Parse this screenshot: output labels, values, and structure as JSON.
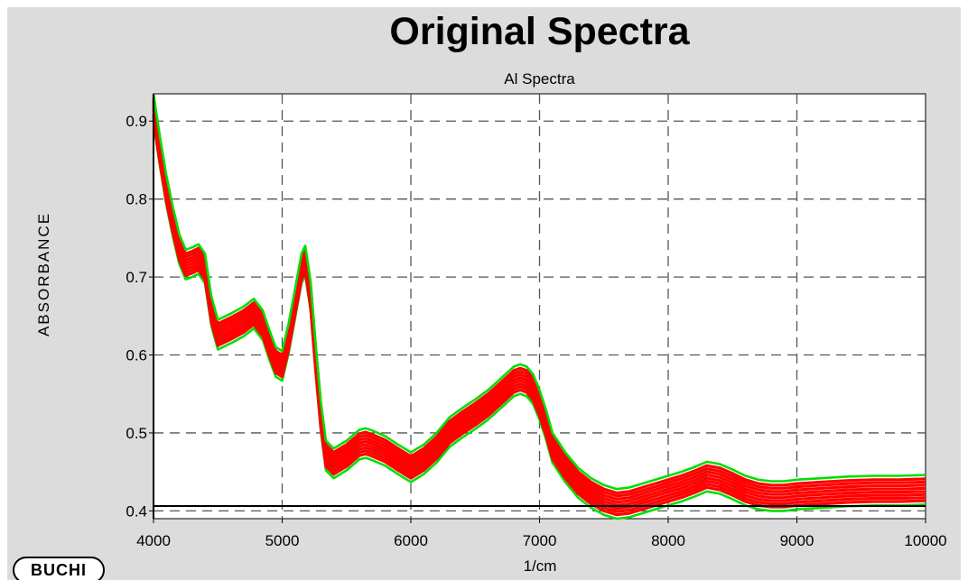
{
  "chart_data": {
    "type": "line",
    "title": "Original Spectra",
    "subtitle": "Al Spectra",
    "xlabel": "1/cm",
    "ylabel": "ABSORBANCE",
    "xlim": [
      4000,
      10000
    ],
    "ylim": [
      0.39,
      0.935
    ],
    "x_ticks": [
      4000,
      5000,
      6000,
      7000,
      8000,
      9000,
      10000
    ],
    "y_ticks": [
      0.4,
      0.5,
      0.6,
      0.7,
      0.8,
      0.9
    ],
    "y_tick_labels": [
      "0.4",
      "0.5",
      "0.6",
      "0.7",
      "0.8",
      "0.9"
    ],
    "grid": true,
    "grid_style": "dashed",
    "colors": {
      "outer_spectra": "#00e000",
      "inner_spectra": "#ff0000",
      "grid": "#555555",
      "plot_background": "#ffffff",
      "panel_background": "#dcdcdc"
    },
    "mean_spectrum": {
      "x": [
        4000,
        4050,
        4100,
        4150,
        4200,
        4250,
        4300,
        4350,
        4400,
        4450,
        4500,
        4600,
        4700,
        4780,
        4850,
        4900,
        4950,
        5000,
        5050,
        5100,
        5150,
        5180,
        5220,
        5260,
        5300,
        5340,
        5400,
        5500,
        5600,
        5650,
        5700,
        5800,
        5900,
        6000,
        6100,
        6200,
        6300,
        6400,
        6500,
        6600,
        6700,
        6800,
        6850,
        6900,
        6950,
        7000,
        7050,
        7100,
        7200,
        7300,
        7400,
        7500,
        7600,
        7700,
        7800,
        7900,
        8000,
        8100,
        8200,
        8300,
        8400,
        8500,
        8600,
        8700,
        8800,
        8900,
        9000,
        9200,
        9400,
        9600,
        9800,
        10000
      ],
      "y": [
        0.915,
        0.86,
        0.81,
        0.77,
        0.735,
        0.715,
        0.718,
        0.722,
        0.71,
        0.655,
        0.625,
        0.633,
        0.642,
        0.652,
        0.637,
        0.612,
        0.59,
        0.585,
        0.62,
        0.665,
        0.71,
        0.72,
        0.675,
        0.595,
        0.52,
        0.47,
        0.46,
        0.47,
        0.484,
        0.486,
        0.483,
        0.476,
        0.465,
        0.455,
        0.465,
        0.48,
        0.5,
        0.512,
        0.523,
        0.535,
        0.55,
        0.565,
        0.568,
        0.565,
        0.555,
        0.535,
        0.51,
        0.48,
        0.455,
        0.435,
        0.422,
        0.413,
        0.408,
        0.41,
        0.415,
        0.42,
        0.425,
        0.43,
        0.436,
        0.443,
        0.44,
        0.433,
        0.425,
        0.42,
        0.418,
        0.418,
        0.42,
        0.422,
        0.424,
        0.425,
        0.425,
        0.426
      ]
    },
    "band_offsets": [
      -0.018,
      -0.013,
      -0.009,
      -0.005,
      -0.001,
      0.003,
      0.007,
      0.011,
      0.015,
      0.02
    ]
  },
  "logo": {
    "text": "BUCHI"
  }
}
